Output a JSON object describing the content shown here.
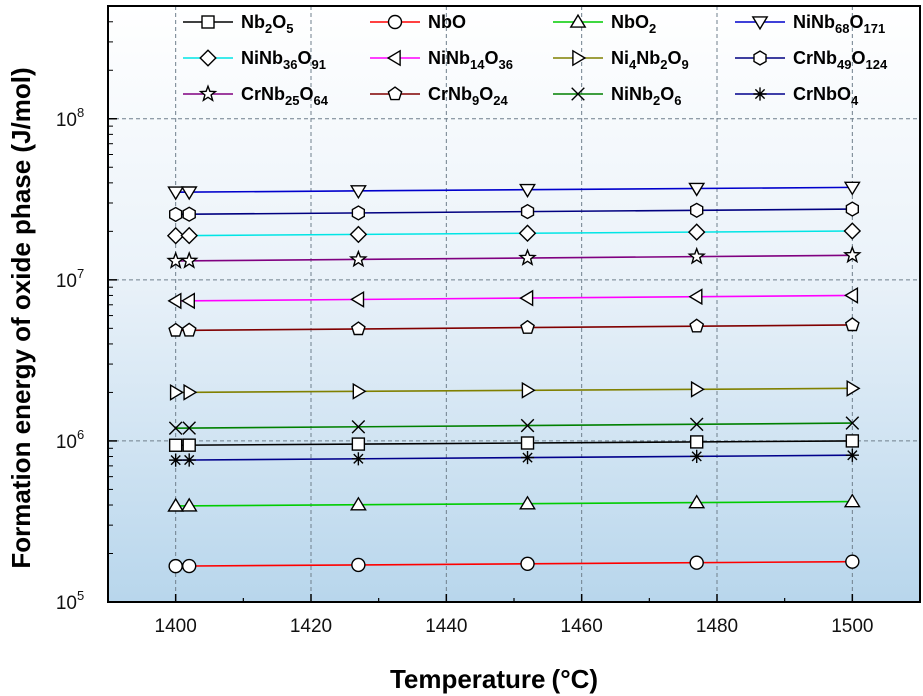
{
  "chart_data": {
    "type": "line",
    "title": "",
    "xlabel": "Temperature",
    "xunit": "°C",
    "ylabel": "Formation energy of oxide phase (J/mol)",
    "xlim": [
      1390,
      1510
    ],
    "ylim_log10": [
      5,
      8.7
    ],
    "x_ticks": [
      1400,
      1420,
      1440,
      1460,
      1480,
      1500
    ],
    "y_ticks": [
      {
        "base": "10",
        "exp": "5",
        "log": 5
      },
      {
        "base": "10",
        "exp": "6",
        "log": 6
      },
      {
        "base": "10",
        "exp": "7",
        "log": 7
      },
      {
        "base": "10",
        "exp": "8",
        "log": 8
      }
    ],
    "grid": true,
    "legend_position": "top",
    "x_marker_positions": [
      1400,
      1402,
      1427,
      1452,
      1477,
      1500
    ],
    "line_start": 1400,
    "line_end": 1500,
    "series": [
      {
        "name": "Nb2O5",
        "label": [
          {
            "t": "Nb"
          },
          {
            "t": "2",
            "s": true
          },
          {
            "t": "O"
          },
          {
            "t": "5",
            "s": true
          }
        ],
        "marker": "square",
        "color": "#000000",
        "start": 940000,
        "end": 1000000
      },
      {
        "name": "NbO",
        "label": [
          {
            "t": "NbO"
          }
        ],
        "marker": "circle",
        "color": "#ff0000",
        "start": 167000,
        "end": 178000
      },
      {
        "name": "NbO2",
        "label": [
          {
            "t": "NbO"
          },
          {
            "t": "2",
            "s": true
          }
        ],
        "marker": "triangle-up",
        "color": "#00cc00",
        "start": 395000,
        "end": 420000
      },
      {
        "name": "NiNb68O171",
        "label": [
          {
            "t": "NiNb"
          },
          {
            "t": "68",
            "s": true
          },
          {
            "t": "O"
          },
          {
            "t": "171",
            "s": true
          }
        ],
        "marker": "triangle-down",
        "color": "#0000cc",
        "start": 35000000,
        "end": 37500000
      },
      {
        "name": "NiNb36O91",
        "label": [
          {
            "t": "NiNb"
          },
          {
            "t": "36",
            "s": true
          },
          {
            "t": "O"
          },
          {
            "t": "91",
            "s": true
          }
        ],
        "marker": "diamond",
        "color": "#00e5e5",
        "start": 18800000,
        "end": 20100000
      },
      {
        "name": "NiNb14O36",
        "label": [
          {
            "t": "NiNb"
          },
          {
            "t": "14",
            "s": true
          },
          {
            "t": "O"
          },
          {
            "t": "36",
            "s": true
          }
        ],
        "marker": "triangle-left",
        "color": "#ff00ff",
        "start": 7400000,
        "end": 8000000
      },
      {
        "name": "Ni4Nb2O9",
        "label": [
          {
            "t": "Ni"
          },
          {
            "t": "4",
            "s": true
          },
          {
            "t": "Nb"
          },
          {
            "t": "2",
            "s": true
          },
          {
            "t": "O"
          },
          {
            "t": "9",
            "s": true
          }
        ],
        "marker": "triangle-right",
        "color": "#808000",
        "start": 2000000,
        "end": 2120000
      },
      {
        "name": "CrNb49O124",
        "label": [
          {
            "t": "CrNb"
          },
          {
            "t": "49",
            "s": true
          },
          {
            "t": "O"
          },
          {
            "t": "124",
            "s": true
          }
        ],
        "marker": "hexagon",
        "color": "#000080",
        "start": 25500000,
        "end": 27500000
      },
      {
        "name": "CrNb25O64",
        "label": [
          {
            "t": "CrNb"
          },
          {
            "t": "25",
            "s": true
          },
          {
            "t": "O"
          },
          {
            "t": "64",
            "s": true
          }
        ],
        "marker": "star",
        "color": "#800080",
        "start": 13100000,
        "end": 14200000
      },
      {
        "name": "CrNb9O24",
        "label": [
          {
            "t": "CrNb"
          },
          {
            "t": "9",
            "s": true
          },
          {
            "t": "O"
          },
          {
            "t": "24",
            "s": true
          }
        ],
        "marker": "pentagon",
        "color": "#800000",
        "start": 4850000,
        "end": 5250000
      },
      {
        "name": "NiNb2O6",
        "label": [
          {
            "t": "NiNb"
          },
          {
            "t": "2",
            "s": true
          },
          {
            "t": "O"
          },
          {
            "t": "6",
            "s": true
          }
        ],
        "marker": "x",
        "color": "#008000",
        "start": 1200000,
        "end": 1290000
      },
      {
        "name": "CrNbO4",
        "label": [
          {
            "t": "CrNbO"
          },
          {
            "t": "4",
            "s": true
          }
        ],
        "marker": "asterisk",
        "color": "#00008b",
        "start": 760000,
        "end": 815000
      }
    ]
  }
}
